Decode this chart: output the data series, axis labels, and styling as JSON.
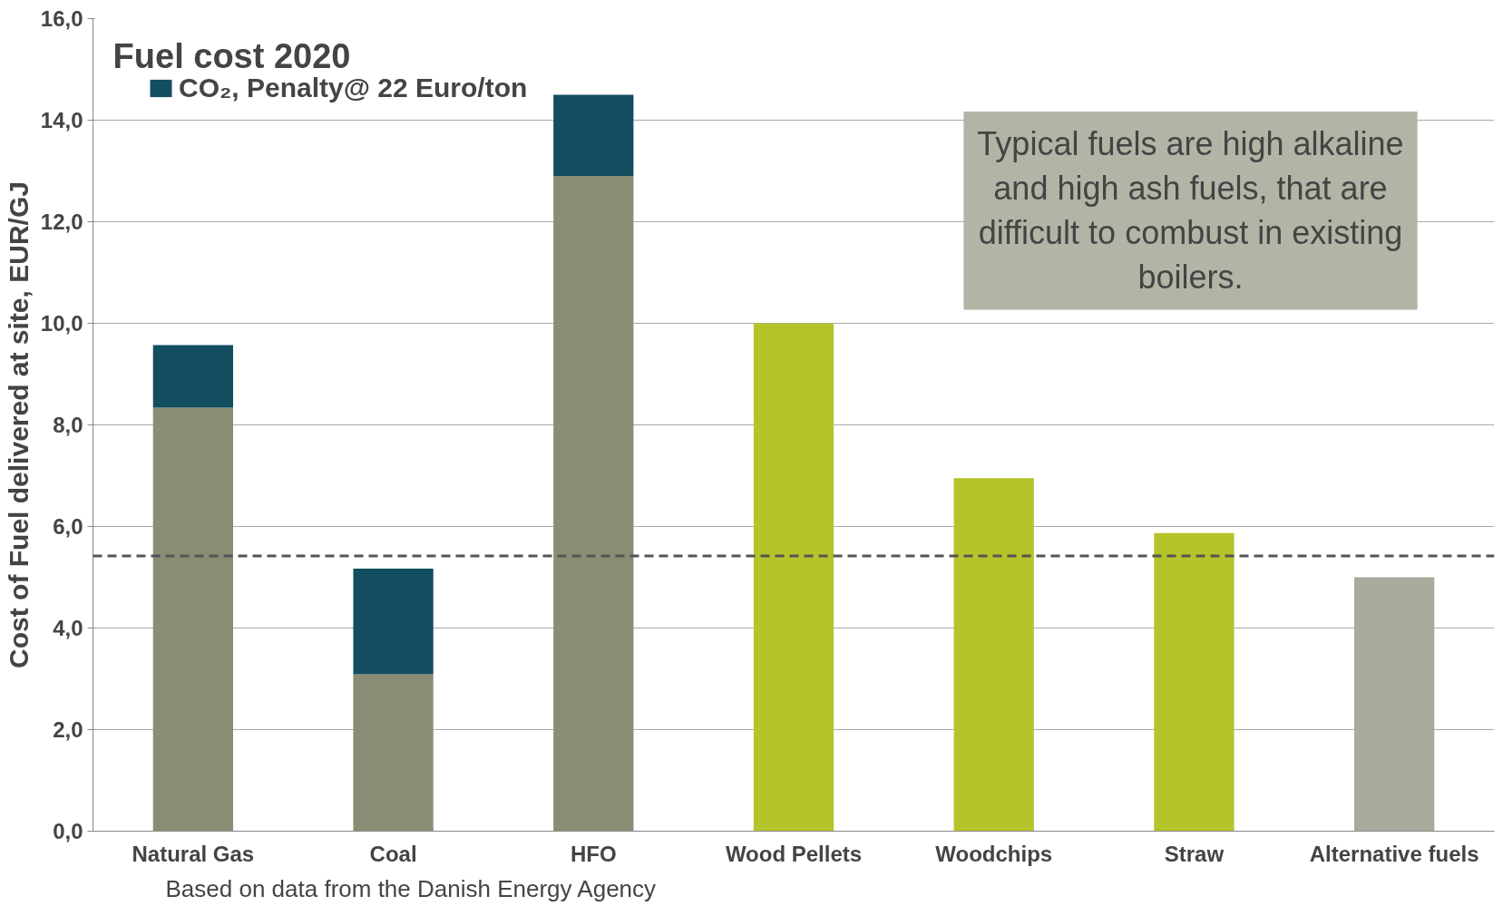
{
  "chart_data": {
    "type": "bar",
    "stacked": true,
    "title": "Fuel cost 2020",
    "ylabel": "Cost of Fuel delivered at site, EUR/GJ",
    "categories": [
      "Natural Gas",
      "Coal",
      "HFO",
      "Wood Pellets",
      "Woodchips",
      "Straw",
      "Alternative fuels"
    ],
    "series": [
      {
        "colors": [
          "#8b8c74",
          "#8b8c74",
          "#8b8c74",
          "#b5c42a",
          "#b5c42a",
          "#b5c42a",
          "#a9aa9c"
        ],
        "values": [
          8.34,
          3.09,
          12.9,
          10.0,
          6.95,
          5.87,
          5.0
        ]
      },
      {
        "name": "CO₂, Penalty@ 22 Euro/ton",
        "color": "#124e60",
        "values": [
          1.23,
          2.08,
          1.6,
          null,
          null,
          null,
          null
        ]
      }
    ],
    "ylim": [
      0,
      16
    ],
    "yticks": [
      {
        "value": 0,
        "label": "0,0"
      },
      {
        "value": 2,
        "label": "2,0"
      },
      {
        "value": 4,
        "label": "4,0"
      },
      {
        "value": 6,
        "label": "6,0"
      },
      {
        "value": 8,
        "label": "8,0"
      },
      {
        "value": 10,
        "label": "10,0"
      },
      {
        "value": 12,
        "label": "12,0"
      },
      {
        "value": 14,
        "label": "14,0"
      },
      {
        "value": 16,
        "label": "16,0"
      }
    ],
    "grid": "y",
    "legend": "top left",
    "ref_lines": [
      {
        "axis": "y",
        "value": 5.42,
        "color": "#555555",
        "line_style": "dashed"
      }
    ],
    "annotations": [
      "Typical fuels are high alkaline and high ash fuels, that are difficult to combust in existing boilers.",
      "Based on data from the Danish Energy Agency"
    ]
  }
}
